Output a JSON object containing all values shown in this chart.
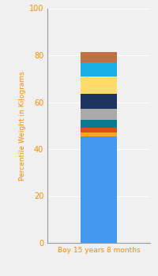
{
  "category": "Boy 15 years 8 months",
  "segments": [
    {
      "value": 45.5,
      "color": "#4499EE"
    },
    {
      "value": 1.5,
      "color": "#F5A623"
    },
    {
      "value": 2.0,
      "color": "#D94E1F"
    },
    {
      "value": 3.5,
      "color": "#0A7A8E"
    },
    {
      "value": 4.5,
      "color": "#AAAAAA"
    },
    {
      "value": 6.5,
      "color": "#1D3461"
    },
    {
      "value": 7.5,
      "color": "#FEDB6A"
    },
    {
      "value": 6.0,
      "color": "#1BB0E5"
    },
    {
      "value": 4.5,
      "color": "#C07040"
    }
  ],
  "ylabel": "Percentile Weight in Kilograms",
  "xlabel": "Boy 15 years 8 months",
  "ylim": [
    0,
    100
  ],
  "yticks": [
    0,
    20,
    40,
    60,
    80,
    100
  ],
  "background_color": "#F0F0F0",
  "grid_color": "#FFFFFF",
  "tick_color": "#FF8C00",
  "label_color": "#FF8C00",
  "bar_width": 0.35,
  "figsize": [
    2.0,
    3.5
  ],
  "dpi": 100
}
